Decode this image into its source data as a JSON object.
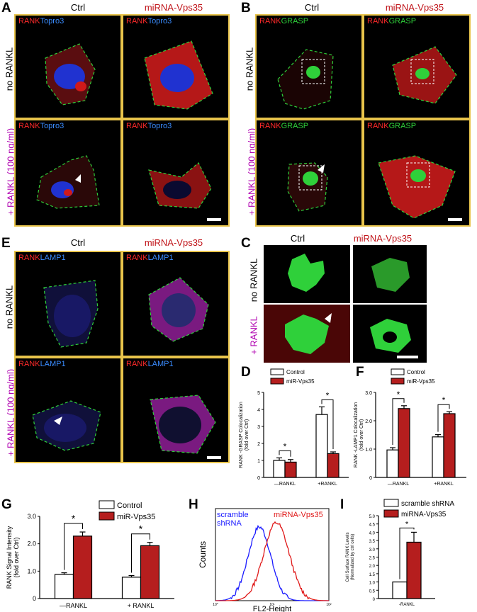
{
  "panel_letters": {
    "A": "A",
    "B": "B",
    "C": "C",
    "D": "D",
    "E": "E",
    "F": "F",
    "G": "G",
    "H": "H",
    "I": "I"
  },
  "conditions": {
    "ctrl": "Ctrl",
    "mirna": "miRNA-Vps35"
  },
  "row_labels": {
    "no_rankl": "no RANKL",
    "rankl_dose": "+ RANKL (100 ng/ml)",
    "rankl_short": "+ RANKL"
  },
  "stain": {
    "rank": "RANK",
    "topro3": "Topro3",
    "grasp": "GRASP",
    "lamp1": "LAMP1"
  },
  "colors": {
    "ctrl_bar": "#ffffff",
    "vps35_bar": "#b51e1e",
    "scramble_line": "#1a1aff",
    "mirna_line": "#e01a1a",
    "frame": "#e8c44b"
  },
  "chart_data": [
    {
      "id": "D",
      "type": "bar",
      "ylabel": "RANK -GRASP  Colocalization (fold over Ctrl)",
      "ylim": [
        0,
        5
      ],
      "yticks": [
        "0",
        "1",
        "2",
        "3",
        "4",
        "5"
      ],
      "categories": [
        "—RANKL",
        "+RANKL"
      ],
      "series": [
        {
          "name": "Control",
          "values": [
            1.0,
            3.7
          ],
          "err": [
            0.15,
            0.45
          ]
        },
        {
          "name": "miR-Vps35",
          "values": [
            0.9,
            1.4
          ],
          "err": [
            0.15,
            0.1
          ]
        }
      ],
      "sig": "*"
    },
    {
      "id": "F",
      "type": "bar",
      "ylabel": "RANK -LAMP1  Colocalization (fold over Ctrl)",
      "ylim": [
        0,
        3
      ],
      "yticks": [
        "0",
        "1.0",
        "2.0",
        "3.0"
      ],
      "categories": [
        "—RANKL",
        "+RANKL"
      ],
      "series": [
        {
          "name": "Control",
          "values": [
            0.97,
            1.43
          ],
          "err": [
            0.08,
            0.08
          ]
        },
        {
          "name": "miR-Vps35",
          "values": [
            2.43,
            2.25
          ],
          "err": [
            0.1,
            0.07
          ]
        }
      ],
      "sig": "*"
    },
    {
      "id": "G",
      "type": "bar",
      "ylabel": "RANK Signal Intensity (fold over Ctrl)",
      "ylim": [
        0,
        3
      ],
      "yticks": [
        "0",
        "1.0",
        "2.0",
        "3.0"
      ],
      "categories": [
        "—RANKL",
        "RANKL"
      ],
      "cat_prefix": [
        "",
        "+"
      ],
      "series": [
        {
          "name": "Control",
          "values": [
            0.88,
            0.78
          ],
          "err": [
            0.06,
            0.06
          ]
        },
        {
          "name": "miR-Vps35",
          "values": [
            2.28,
            1.93
          ],
          "err": [
            0.15,
            0.12
          ]
        }
      ],
      "sig": "*"
    },
    {
      "id": "H",
      "type": "line",
      "xlabel": "FL2-Height",
      "ylabel": "Counts",
      "xticks": [
        "10⁰",
        "10¹",
        "10²"
      ],
      "series": [
        {
          "name": "scramble shRNA",
          "label_lines": [
            "scramble",
            "shRNA"
          ]
        },
        {
          "name": "miRNA-Vps35",
          "label_lines": [
            "miRNA-Vps35"
          ]
        }
      ]
    },
    {
      "id": "I",
      "type": "bar",
      "ylabel": "Cell Surface RANK Levels (Normalized by ctrl cells)",
      "ylim": [
        0,
        5
      ],
      "yticks": [
        "0",
        "0.5",
        "1.0",
        "1.5",
        "2.0",
        "2.5",
        "3.0",
        "3.5",
        "4.0",
        "4.5",
        "5.0"
      ],
      "categories": [
        "-RANKL"
      ],
      "series": [
        {
          "name": "scramble shRNA",
          "values": [
            1.0
          ],
          "err": [
            0
          ]
        },
        {
          "name": "miRNA-Vps35",
          "values": [
            3.4
          ],
          "err": [
            0.6
          ]
        }
      ],
      "sig": "*"
    }
  ]
}
